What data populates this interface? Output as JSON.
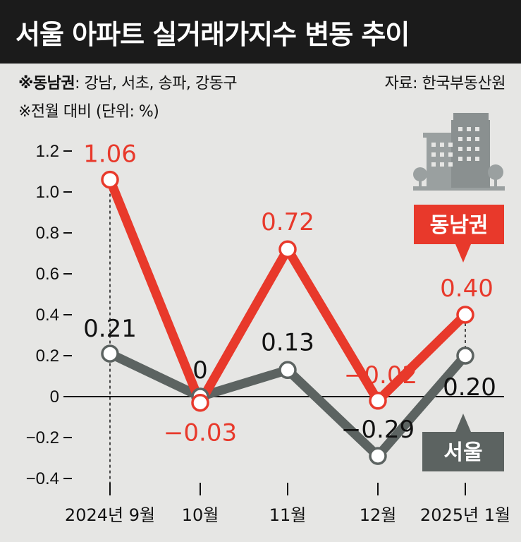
{
  "header": {
    "title": "서울 아파트 실거래가지수 변동 추이",
    "note_region_label": "※동남권",
    "note_region_value": ": 강남, 서초, 송파, 강동구",
    "note_unit": "※전월 대비 (단위: %)",
    "source": "자료: 한국부동산원"
  },
  "icons": {
    "illustration": "buildings-trees-icon"
  },
  "colors": {
    "southeast": "#e8392b",
    "seoul": "#5c6361",
    "background": "#e6e6e4"
  },
  "chart_data": {
    "type": "line",
    "title": "서울 아파트 실거래가지수 변동 추이",
    "xlabel": "",
    "ylabel": "",
    "categories": [
      "2024년 9월",
      "10월",
      "11월",
      "12월",
      "2025년 1월"
    ],
    "ylim": [
      -0.4,
      1.2
    ],
    "yticks": [
      "1.2",
      "1.0",
      "0.8",
      "0.6",
      "0.4",
      "0.2",
      "0",
      "-0.2",
      "-0.4"
    ],
    "grid": false,
    "legend_placement": "right",
    "series": [
      {
        "name": "동남권",
        "values": [
          1.06,
          -0.03,
          0.72,
          -0.02,
          0.4
        ],
        "labels": [
          "1.06",
          "−0.03",
          "0.72",
          "−0.02",
          "0.40"
        ]
      },
      {
        "name": "서울",
        "values": [
          0.21,
          0,
          0.13,
          -0.29,
          0.2
        ],
        "labels": [
          "0.21",
          "0",
          "0.13",
          "−0.29",
          "0.20"
        ]
      }
    ]
  }
}
